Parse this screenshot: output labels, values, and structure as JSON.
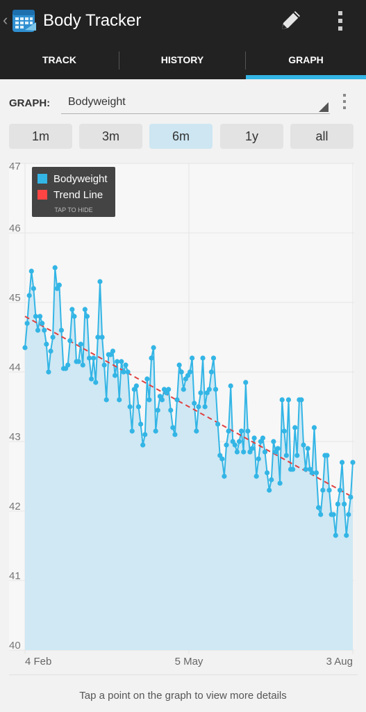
{
  "app": {
    "title": "Body Tracker",
    "back_glyph": "‹",
    "icons": {
      "app": "calendar-app-icon",
      "edit": "pencil-icon",
      "overflow": "overflow-menu-icon"
    }
  },
  "tabs": [
    {
      "label": "TRACK",
      "selected": false
    },
    {
      "label": "HISTORY",
      "selected": false
    },
    {
      "label": "GRAPH",
      "selected": true
    }
  ],
  "graph_selector": {
    "label": "GRAPH:",
    "value": "Bodyweight"
  },
  "range_buttons": [
    {
      "label": "1m",
      "selected": false
    },
    {
      "label": "3m",
      "selected": false
    },
    {
      "label": "6m",
      "selected": true
    },
    {
      "label": "1y",
      "selected": false
    },
    {
      "label": "all",
      "selected": false
    }
  ],
  "legend": {
    "entries": [
      {
        "label": "Bodyweight",
        "color": "#33b5e5"
      },
      {
        "label": "Trend Line",
        "color": "#ff4444"
      }
    ],
    "hide_hint": "TAP TO HIDE"
  },
  "hint_text": "Tap a point on the graph to view more details",
  "colors": {
    "accent": "#33b5e5",
    "trend": "#e04040",
    "area": "#cfe8f4",
    "bar": "#222222"
  },
  "chart_data": {
    "type": "area",
    "series": [
      {
        "name": "Bodyweight",
        "values": [
          44.35,
          44.7,
          45.1,
          45.45,
          45.2,
          44.8,
          44.6,
          44.8,
          44.7,
          44.6,
          44.4,
          44.0,
          44.3,
          44.5,
          45.5,
          45.2,
          45.25,
          44.6,
          44.05,
          44.05,
          44.1,
          44.45,
          44.9,
          44.8,
          44.15,
          44.15,
          44.4,
          44.1,
          44.9,
          44.8,
          44.2,
          43.9,
          44.2,
          43.85,
          44.5,
          45.3,
          44.5,
          44.1,
          43.6,
          44.25,
          44.25,
          44.3,
          43.95,
          44.15,
          43.6,
          44.15,
          44.0,
          44.1,
          44.0,
          43.5,
          43.15,
          43.75,
          43.8,
          43.5,
          43.25,
          42.95,
          43.1,
          43.9,
          43.6,
          44.2,
          44.35,
          43.15,
          43.45,
          43.65,
          43.6,
          43.75,
          43.7,
          43.75,
          43.45,
          43.2,
          43.1,
          43.6,
          44.1,
          44.0,
          43.75,
          43.9,
          43.95,
          44.0,
          44.2,
          43.55,
          43.15,
          43.5,
          43.7,
          44.2,
          43.5,
          43.7,
          43.75,
          44.0,
          44.2,
          43.75,
          43.25,
          42.8,
          42.75,
          42.5,
          42.95,
          43.15,
          43.8,
          43.0,
          42.95,
          42.85,
          43.0,
          43.15,
          42.85,
          43.85,
          43.15,
          42.85,
          42.9,
          43.05,
          42.5,
          42.75,
          43.0,
          43.05,
          42.85,
          42.55,
          42.3,
          42.45,
          43.0,
          42.85,
          42.9,
          42.4,
          43.6,
          43.15,
          42.8,
          43.6,
          42.6,
          42.6,
          43.2,
          42.8,
          43.6,
          43.6,
          42.95,
          42.6,
          42.9,
          42.6,
          42.55,
          43.2,
          42.55,
          42.05,
          41.95,
          42.3,
          42.8,
          42.8,
          42.3,
          41.95,
          41.95,
          41.65,
          42.1,
          42.3,
          42.7,
          42.1,
          41.65,
          41.95,
          42.2,
          42.7
        ]
      },
      {
        "name": "Trend Line",
        "values": [
          44.8,
          42.2
        ]
      }
    ],
    "x_tick_labels": [
      "4 Feb",
      "5 May",
      "3 Aug"
    ],
    "y_tick_labels": [
      "47",
      "46",
      "45",
      "44",
      "43",
      "42",
      "41",
      "40"
    ],
    "ylim": [
      40,
      47
    ],
    "grid": true,
    "legend_position": "top-left"
  }
}
